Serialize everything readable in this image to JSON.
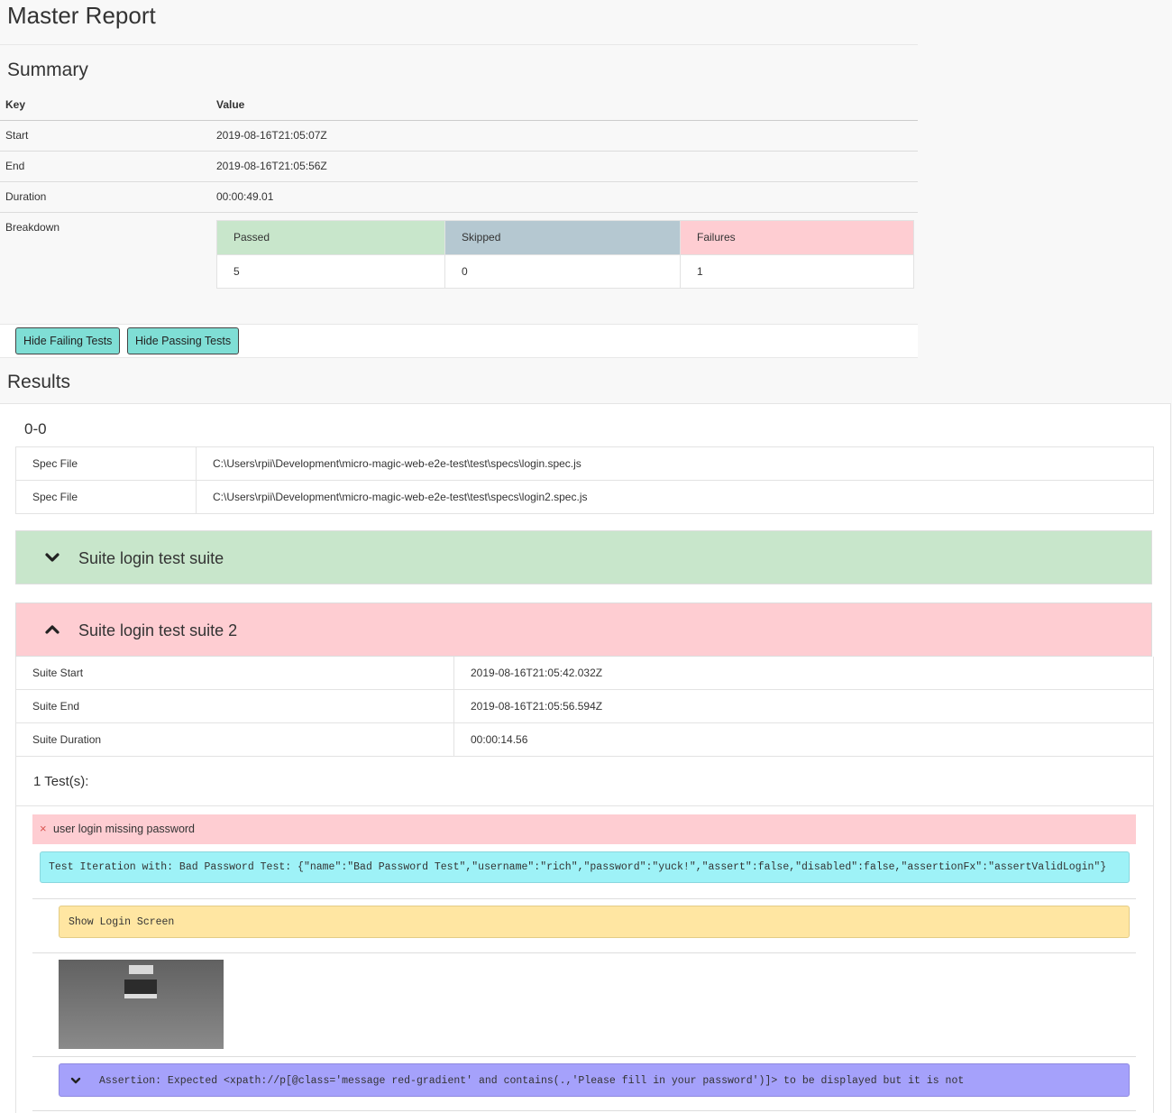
{
  "page_title": "Master Report",
  "summary": {
    "title": "Summary",
    "header": {
      "key": "Key",
      "value": "Value"
    },
    "rows": [
      {
        "key": "Start",
        "value": "2019-08-16T21:05:07Z"
      },
      {
        "key": "End",
        "value": "2019-08-16T21:05:56Z"
      },
      {
        "key": "Duration",
        "value": "00:00:49.01"
      }
    ],
    "breakdown": {
      "key": "Breakdown",
      "passed_label": "Passed",
      "passed": "5",
      "skipped_label": "Skipped",
      "skipped": "0",
      "failures_label": "Failures",
      "failures": "1",
      "colors": {
        "passed": "#c8e6cb",
        "skipped": "#b5c8d1",
        "failures": "#fecdd2"
      }
    }
  },
  "buttons": {
    "hide_failing": "Hide Failing Tests",
    "hide_passing": "Hide Passing Tests"
  },
  "results": {
    "title": "Results",
    "group_id": "0-0",
    "spec_files": [
      {
        "key": "Spec File",
        "value": "C:\\Users\\rpii\\Development\\micro-magic-web-e2e-test\\test\\specs\\login.spec.js"
      },
      {
        "key": "Spec File",
        "value": "C:\\Users\\rpii\\Development\\micro-magic-web-e2e-test\\test\\specs\\login2.spec.js"
      }
    ],
    "suites": [
      {
        "title": "Suite login test suite",
        "state": "collapsed",
        "icon": "chevron-down-icon",
        "status": "passed"
      },
      {
        "title": "Suite login test suite 2",
        "state": "expanded",
        "icon": "chevron-up-icon",
        "status": "failed"
      }
    ],
    "suite_details": {
      "start_label": "Suite Start",
      "start": "2019-08-16T21:05:42.032Z",
      "end_label": "Suite End",
      "end": "2019-08-16T21:05:56.594Z",
      "duration_label": "Suite Duration",
      "duration": "00:00:14.56",
      "tests_count": "1 Test(s):"
    },
    "test": {
      "status_icon": "×",
      "title": "user login missing password",
      "iteration": "Test Iteration with: Bad Password Test: {\"name\":\"Bad Password Test\",\"username\":\"rich\",\"password\":\"yuck!\",\"assert\":false,\"disabled\":false,\"assertionFx\":\"assertValidLogin\"}",
      "step": "Show Login Screen",
      "assertion": "Assertion: Expected <xpath://p[@class='message red-gradient' and contains(.,'Please fill in your password')]> to be displayed but it is not"
    }
  }
}
